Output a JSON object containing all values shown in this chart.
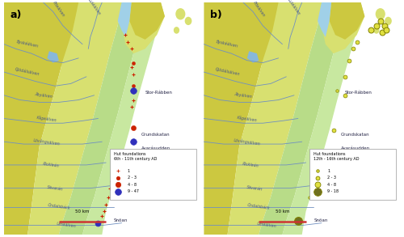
{
  "fig_width": 5.0,
  "fig_height": 2.93,
  "dpi": 100,
  "bg_sea": "#a0d0e8",
  "bg_land_yellow": "#ccc840",
  "bg_land_lightyellow": "#d8e070",
  "bg_land_lightgreen": "#b8dc88",
  "bg_land_coastal_green": "#c8e8a0",
  "river_color": "#7090c0",
  "lake_color": "#88b8d8",
  "label_a": "a)",
  "label_b": "b)",
  "legend_title_a": "Hut foundations\n6th - 11th century AD",
  "legend_title_b": "Hut foundations\n12th - 16th century AD",
  "legend_a_sizes": [
    "1",
    "2 - 3",
    "4 - 8",
    "9 - 47"
  ],
  "legend_b_sizes": [
    "1",
    "2 - 3",
    "4 - 8",
    "9 - 18"
  ],
  "color_a_small": "#cc2200",
  "color_a_large": "#3030bb",
  "color_b_outline": "#808000",
  "color_b_fill": "#e0e040",
  "scale_bar_label": "50 km",
  "scale_bar_color": "#cc3333"
}
